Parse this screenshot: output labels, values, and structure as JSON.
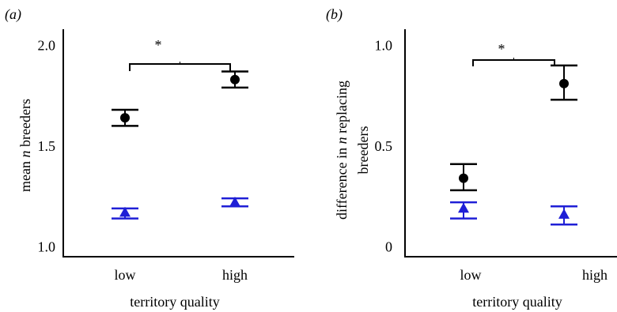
{
  "chart_data": [
    {
      "type": "scatter",
      "panel_label": "(a)",
      "xlabel": "territory quality",
      "ylabel": "mean n breeders",
      "categories": [
        "low",
        "high"
      ],
      "ylim": [
        0.95,
        2.08
      ],
      "yticks": [
        1.0,
        1.5,
        2.0
      ],
      "ytick_labels": [
        "1.0",
        "1.5",
        "2.0"
      ],
      "series": [
        {
          "marker": "circle",
          "color": "#000000",
          "values": [
            1.64,
            1.83
          ],
          "err_low": [
            1.6,
            1.79
          ],
          "err_high": [
            1.68,
            1.87
          ]
        },
        {
          "marker": "triangle",
          "color": "#1f1fd6",
          "values": [
            1.17,
            1.22
          ],
          "err_low": [
            1.14,
            1.2
          ],
          "err_high": [
            1.19,
            1.24
          ]
        }
      ],
      "significance": {
        "label": "*",
        "between": [
          "low",
          "high"
        ]
      }
    },
    {
      "type": "scatter",
      "panel_label": "(b)",
      "xlabel": "territory quality",
      "ylabel": "difference in n replacing breeders",
      "categories": [
        "low",
        "high"
      ],
      "ylim": [
        -0.05,
        1.08
      ],
      "yticks": [
        0,
        0.5,
        1.0
      ],
      "ytick_labels": [
        "0",
        "0.5",
        "1.0"
      ],
      "series": [
        {
          "marker": "circle",
          "color": "#000000",
          "values": [
            0.34,
            0.81
          ],
          "err_low": [
            0.28,
            0.73
          ],
          "err_high": [
            0.41,
            0.9
          ]
        },
        {
          "marker": "triangle",
          "color": "#1f1fd6",
          "values": [
            0.19,
            0.16
          ],
          "err_low": [
            0.14,
            0.11
          ],
          "err_high": [
            0.22,
            0.2
          ]
        }
      ],
      "significance": {
        "label": "*",
        "between": [
          "low",
          "high"
        ]
      }
    }
  ]
}
